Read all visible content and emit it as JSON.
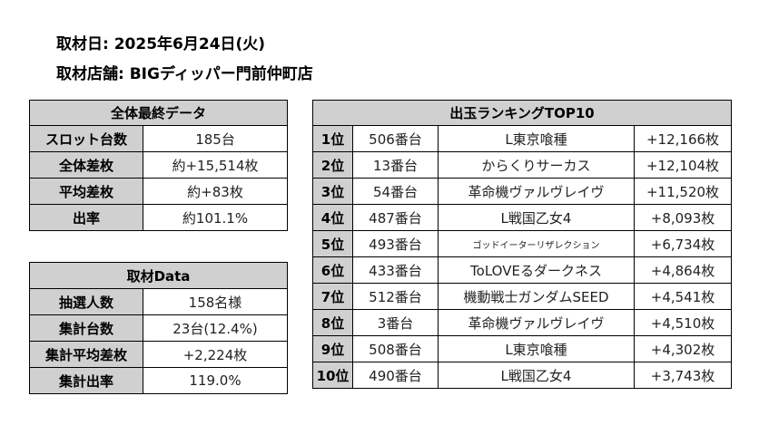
{
  "header": {
    "lines": [
      "取材日: 2025年6月24日(火)",
      "取材店舗: BIGディッパー門前仲町店"
    ]
  },
  "summary": {
    "title": "全体最終データ",
    "rows": [
      [
        "スロット台数",
        "185台"
      ],
      [
        "全体差枚",
        "約+15,514枚"
      ],
      [
        "平均差枚",
        "約+83枚"
      ],
      [
        "出率",
        "約101.1%"
      ]
    ]
  },
  "coverage": {
    "title": "取材Data",
    "rows": [
      [
        "抽選人数",
        "158名様"
      ],
      [
        "集計台数",
        "23台(12.4%)"
      ],
      [
        "集計平均差枚",
        "+2,224枚"
      ],
      [
        "集計出率",
        "119.0%"
      ]
    ]
  },
  "ranking": {
    "title": "出玉ランキングTOP10",
    "rows": [
      [
        "1位",
        "506番台",
        "L東京喰種",
        "+12,166枚"
      ],
      [
        "2位",
        "13番台",
        "からくりサーカス",
        "+12,104枚"
      ],
      [
        "3位",
        "54番台",
        "革命機ヴァルヴレイヴ",
        "+11,520枚"
      ],
      [
        "4位",
        "487番台",
        "L戦国乙女4",
        "+8,093枚"
      ],
      [
        "5位",
        "493番台",
        "ゴッドイーターリザレクション",
        "+6,734枚"
      ],
      [
        "6位",
        "433番台",
        "ToLOVEるダークネス",
        "+4,864枚"
      ],
      [
        "7位",
        "512番台",
        "機動戦士ガンダムSEED",
        "+4,541枚"
      ],
      [
        "8位",
        "3番台",
        "革命機ヴァルヴレイヴ",
        "+4,510枚"
      ],
      [
        "9位",
        "508番台",
        "L東京喰種",
        "+4,302枚"
      ],
      [
        "10位",
        "490番台",
        "L戦国乙女4",
        "+3,743枚"
      ]
    ]
  }
}
